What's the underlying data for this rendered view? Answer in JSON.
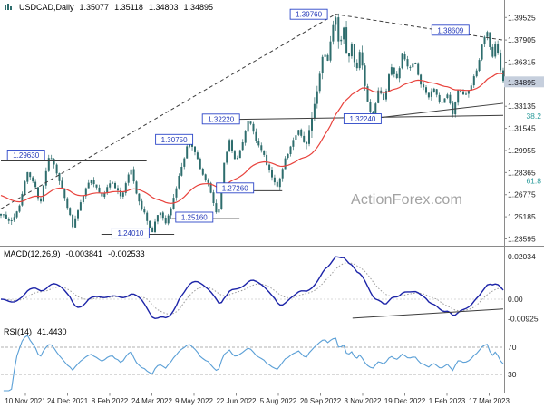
{
  "watermark": "ActionForex.com",
  "colors": {
    "candle": "#2e6d6d",
    "ma": "#e8423c",
    "macd": "#1c24a8",
    "macd_signal": "#9a9a9a",
    "rsi": "#5a9fd6",
    "label_box_border": "#2c46c8",
    "label_box_text": "#2338b8",
    "fib_text": "#2b9b9b",
    "current_price_bg": "#c6cfdd",
    "trendline": "#3c3c3c",
    "grid": "#8a8a8a",
    "axis_text": "#222222"
  },
  "chart_data": [
    {
      "type": "candlestick",
      "pane": "price",
      "title": "USDCAD,Daily",
      "ohlc": [
        "1.35077",
        "1.35118",
        "1.34803",
        "1.34895"
      ],
      "current_price": "1.34895",
      "ylim": [
        1.233,
        1.4
      ],
      "y_ticks": [
        "1.39525",
        "1.37905",
        "1.36315",
        "1.33135",
        "1.31545",
        "1.29955",
        "1.28365",
        "1.26775",
        "1.25185",
        "1.23595"
      ],
      "fib_labels": [
        {
          "text": "38.2",
          "price": 1.3243
        },
        {
          "text": "61.8",
          "price": 1.2778
        }
      ],
      "x_labels": [
        "10 Nov 2021",
        "24 Dec 2021",
        "8 Feb 2022",
        "24 Mar 2022",
        "9 May 2022",
        "22 Jun 2022",
        "5 Aug 2022",
        "20 Sep 2022",
        "3 Nov 2022",
        "19 Dec 2022",
        "1 Feb 2023",
        "17 Mar 2023"
      ],
      "close_path": [
        [
          0.0,
          1.2545
        ],
        [
          0.018,
          1.2468
        ],
        [
          0.035,
          1.258
        ],
        [
          0.052,
          1.2838
        ],
        [
          0.065,
          1.2768
        ],
        [
          0.078,
          1.2615
        ],
        [
          0.096,
          1.2963
        ],
        [
          0.11,
          1.285
        ],
        [
          0.125,
          1.268
        ],
        [
          0.143,
          1.2455
        ],
        [
          0.16,
          1.264
        ],
        [
          0.18,
          1.2795
        ],
        [
          0.2,
          1.267
        ],
        [
          0.22,
          1.277
        ],
        [
          0.24,
          1.266
        ],
        [
          0.258,
          1.2868
        ],
        [
          0.275,
          1.262
        ],
        [
          0.288,
          1.252
        ],
        [
          0.3,
          1.2403
        ],
        [
          0.315,
          1.256
        ],
        [
          0.328,
          1.247
        ],
        [
          0.342,
          1.262
        ],
        [
          0.358,
          1.285
        ],
        [
          0.374,
          1.3076
        ],
        [
          0.386,
          1.299
        ],
        [
          0.398,
          1.285
        ],
        [
          0.412,
          1.277
        ],
        [
          0.424,
          1.262
        ],
        [
          0.432,
          1.2518
        ],
        [
          0.444,
          1.289
        ],
        [
          0.455,
          1.307
        ],
        [
          0.468,
          1.29
        ],
        [
          0.48,
          1.303
        ],
        [
          0.494,
          1.3223
        ],
        [
          0.508,
          1.306
        ],
        [
          0.524,
          1.295
        ],
        [
          0.538,
          1.282
        ],
        [
          0.55,
          1.2727
        ],
        [
          0.565,
          1.292
        ],
        [
          0.58,
          1.306
        ],
        [
          0.594,
          1.314
        ],
        [
          0.606,
          1.3
        ],
        [
          0.62,
          1.325
        ],
        [
          0.634,
          1.352
        ],
        [
          0.642,
          1.374
        ],
        [
          0.65,
          1.362
        ],
        [
          0.658,
          1.383
        ],
        [
          0.666,
          1.3976
        ],
        [
          0.674,
          1.37
        ],
        [
          0.682,
          1.387
        ],
        [
          0.69,
          1.364
        ],
        [
          0.698,
          1.376
        ],
        [
          0.706,
          1.355
        ],
        [
          0.716,
          1.372
        ],
        [
          0.728,
          1.34
        ],
        [
          0.74,
          1.3227
        ],
        [
          0.752,
          1.345
        ],
        [
          0.764,
          1.334
        ],
        [
          0.776,
          1.362
        ],
        [
          0.788,
          1.35
        ],
        [
          0.8,
          1.37
        ],
        [
          0.812,
          1.357
        ],
        [
          0.824,
          1.363
        ],
        [
          0.836,
          1.348
        ],
        [
          0.85,
          1.338
        ],
        [
          0.862,
          1.344
        ],
        [
          0.876,
          1.333
        ],
        [
          0.89,
          1.339
        ],
        [
          0.9,
          1.3262
        ],
        [
          0.912,
          1.345
        ],
        [
          0.924,
          1.338
        ],
        [
          0.936,
          1.347
        ],
        [
          0.948,
          1.359
        ],
        [
          0.958,
          1.375
        ],
        [
          0.968,
          1.3861
        ],
        [
          0.978,
          1.366
        ],
        [
          0.986,
          1.378
        ],
        [
          0.993,
          1.359
        ],
        [
          1.0,
          1.349
        ]
      ],
      "price_labels": [
        {
          "text": "1.39760",
          "t": 0.613,
          "price": 1.3976
        },
        {
          "text": "1.38609",
          "t": 0.895,
          "price": 1.3861
        },
        {
          "text": "1.32220",
          "t": 0.438,
          "price": 1.3222
        },
        {
          "text": "1.32240",
          "t": 0.72,
          "price": 1.3224
        },
        {
          "text": "1.30750",
          "t": 0.345,
          "price": 1.3075
        },
        {
          "text": "1.29630",
          "t": 0.05,
          "price": 1.2963
        },
        {
          "text": "1.27260",
          "t": 0.466,
          "price": 1.2726
        },
        {
          "text": "1.25160",
          "t": 0.385,
          "price": 1.2516
        },
        {
          "text": "1.24010",
          "t": 0.258,
          "price": 1.2401
        }
      ],
      "lines": [
        {
          "from": [
            0.0,
            1.2576
          ],
          "to": [
            0.666,
            1.3976
          ],
          "style": "dashed"
        },
        {
          "from": [
            0.666,
            1.3976
          ],
          "to": [
            1.0,
            1.379
          ],
          "style": "dashed"
        },
        {
          "from": [
            0.44,
            1.3218
          ],
          "to": [
            1.0,
            1.3248
          ],
          "style": "solid"
        },
        {
          "from": [
            0.74,
            1.3226
          ],
          "to": [
            1.0,
            1.3335
          ],
          "style": "solid"
        },
        {
          "from": [
            0.0,
            1.292
          ],
          "to": [
            0.29,
            1.292
          ],
          "style": "solid"
        },
        {
          "from": [
            0.2,
            1.2392
          ],
          "to": [
            0.345,
            1.2392
          ],
          "style": "solid"
        },
        {
          "from": [
            0.43,
            1.2706
          ],
          "to": [
            0.56,
            1.2706
          ],
          "style": "solid"
        },
        {
          "from": [
            0.34,
            1.2505
          ],
          "to": [
            0.475,
            1.2505
          ],
          "style": "solid"
        }
      ]
    },
    {
      "type": "line",
      "pane": "macd",
      "params": "MACD(12,26,9)",
      "values": [
        "-0.003841",
        "-0.002533"
      ],
      "y_labels": [
        {
          "text": "0.02034",
          "value": 0.02034
        },
        {
          "text": "0.00",
          "value": 0
        },
        {
          "text": "-0.00925",
          "value": -0.00925
        }
      ],
      "lines": [
        {
          "from": [
            0.7,
            -0.0091
          ],
          "to": [
            1.0,
            -0.0047
          ],
          "style": "solid"
        }
      ]
    },
    {
      "type": "line",
      "pane": "rsi",
      "params": "RSI(14)",
      "value": "41.4430",
      "levels": [
        {
          "text": "70",
          "value": 70
        },
        {
          "text": "30",
          "value": 30
        }
      ]
    }
  ]
}
